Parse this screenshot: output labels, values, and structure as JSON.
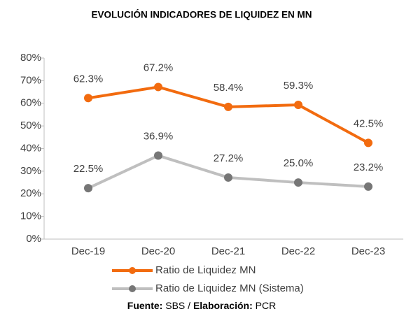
{
  "chart_data": {
    "type": "line",
    "title": "EVOLUCIÓN INDICADORES DE LIQUIDEZ EN MN",
    "categories": [
      "Dec-19",
      "Dec-20",
      "Dec-21",
      "Dec-22",
      "Dec-23"
    ],
    "series": [
      {
        "name": "Ratio de Liquidez MN",
        "color": "#f26b0f",
        "marker_color": "#f26b0f",
        "values": [
          62.3,
          67.2,
          58.4,
          59.3,
          42.5
        ],
        "value_labels": [
          "62.3%",
          "67.2%",
          "58.4%",
          "59.3%",
          "42.5%"
        ]
      },
      {
        "name": "Ratio de Liquidez MN (Sistema)",
        "color": "#bfbfbf",
        "marker_color": "#767676",
        "values": [
          22.5,
          36.9,
          27.2,
          25.0,
          23.2
        ],
        "value_labels": [
          "22.5%",
          "36.9%",
          "27.2%",
          "25.0%",
          "23.2%"
        ]
      }
    ],
    "ylim": [
      0,
      80
    ],
    "yticks": [
      {
        "value": 0,
        "label": "0%"
      },
      {
        "value": 10,
        "label": "10%"
      },
      {
        "value": 20,
        "label": "20%"
      },
      {
        "value": 30,
        "label": "30%"
      },
      {
        "value": 40,
        "label": "40%"
      },
      {
        "value": 50,
        "label": "50%"
      },
      {
        "value": 60,
        "label": "60%"
      },
      {
        "value": 70,
        "label": "70%"
      },
      {
        "value": 80,
        "label": "80%"
      }
    ],
    "grid": false,
    "legend": "bottom",
    "footer": {
      "source_label": "Fuente:",
      "source": " SBS / ",
      "credit_label": "Elaboración:",
      "credit": " PCR"
    }
  }
}
